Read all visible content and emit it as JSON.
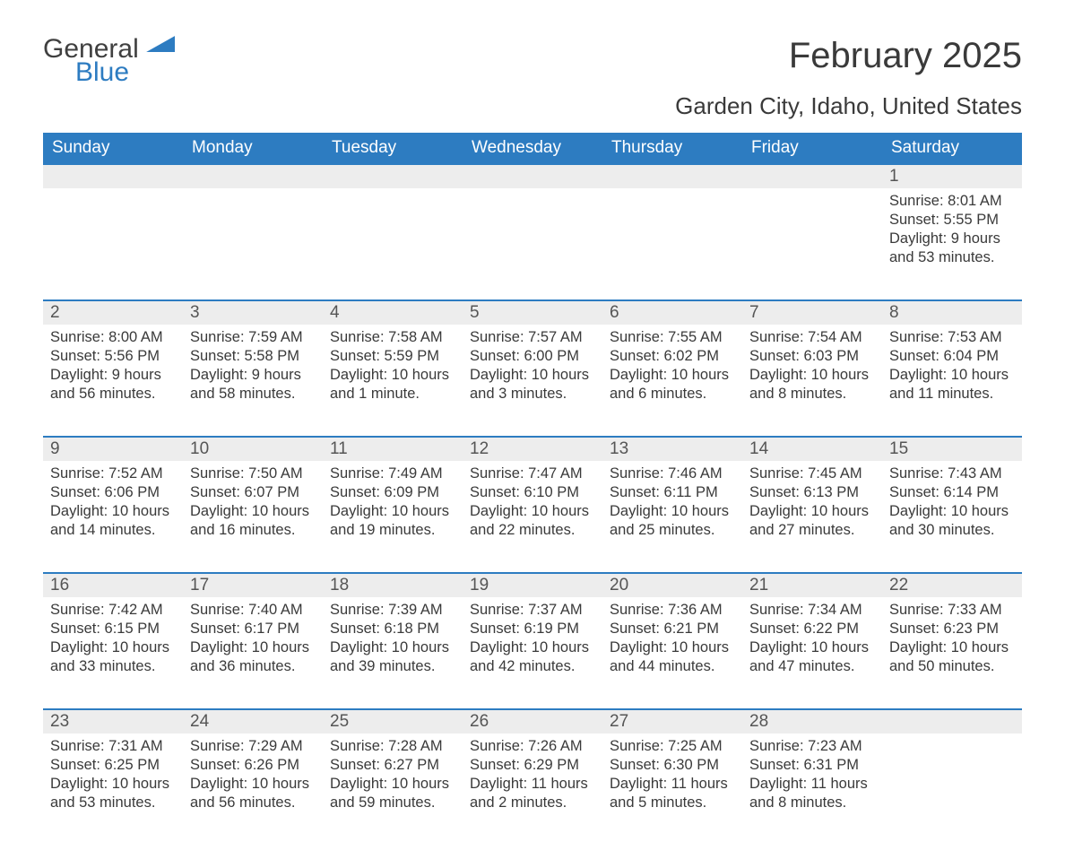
{
  "brand": {
    "word1": "General",
    "word2": "Blue"
  },
  "title": "February 2025",
  "location": "Garden City, Idaho, United States",
  "colors": {
    "accent": "#2d7cc1",
    "header_bg": "#2d7cc1",
    "header_text": "#ffffff",
    "daynum_bg": "#ededed",
    "text": "#3a3a3a",
    "page_bg": "#ffffff"
  },
  "day_headers": [
    "Sunday",
    "Monday",
    "Tuesday",
    "Wednesday",
    "Thursday",
    "Friday",
    "Saturday"
  ],
  "weeks": [
    [
      null,
      null,
      null,
      null,
      null,
      null,
      {
        "n": "1",
        "sunrise": "8:01 AM",
        "sunset": "5:55 PM",
        "daylight": "9 hours and 53 minutes."
      }
    ],
    [
      {
        "n": "2",
        "sunrise": "8:00 AM",
        "sunset": "5:56 PM",
        "daylight": "9 hours and 56 minutes."
      },
      {
        "n": "3",
        "sunrise": "7:59 AM",
        "sunset": "5:58 PM",
        "daylight": "9 hours and 58 minutes."
      },
      {
        "n": "4",
        "sunrise": "7:58 AM",
        "sunset": "5:59 PM",
        "daylight": "10 hours and 1 minute."
      },
      {
        "n": "5",
        "sunrise": "7:57 AM",
        "sunset": "6:00 PM",
        "daylight": "10 hours and 3 minutes."
      },
      {
        "n": "6",
        "sunrise": "7:55 AM",
        "sunset": "6:02 PM",
        "daylight": "10 hours and 6 minutes."
      },
      {
        "n": "7",
        "sunrise": "7:54 AM",
        "sunset": "6:03 PM",
        "daylight": "10 hours and 8 minutes."
      },
      {
        "n": "8",
        "sunrise": "7:53 AM",
        "sunset": "6:04 PM",
        "daylight": "10 hours and 11 minutes."
      }
    ],
    [
      {
        "n": "9",
        "sunrise": "7:52 AM",
        "sunset": "6:06 PM",
        "daylight": "10 hours and 14 minutes."
      },
      {
        "n": "10",
        "sunrise": "7:50 AM",
        "sunset": "6:07 PM",
        "daylight": "10 hours and 16 minutes."
      },
      {
        "n": "11",
        "sunrise": "7:49 AM",
        "sunset": "6:09 PM",
        "daylight": "10 hours and 19 minutes."
      },
      {
        "n": "12",
        "sunrise": "7:47 AM",
        "sunset": "6:10 PM",
        "daylight": "10 hours and 22 minutes."
      },
      {
        "n": "13",
        "sunrise": "7:46 AM",
        "sunset": "6:11 PM",
        "daylight": "10 hours and 25 minutes."
      },
      {
        "n": "14",
        "sunrise": "7:45 AM",
        "sunset": "6:13 PM",
        "daylight": "10 hours and 27 minutes."
      },
      {
        "n": "15",
        "sunrise": "7:43 AM",
        "sunset": "6:14 PM",
        "daylight": "10 hours and 30 minutes."
      }
    ],
    [
      {
        "n": "16",
        "sunrise": "7:42 AM",
        "sunset": "6:15 PM",
        "daylight": "10 hours and 33 minutes."
      },
      {
        "n": "17",
        "sunrise": "7:40 AM",
        "sunset": "6:17 PM",
        "daylight": "10 hours and 36 minutes."
      },
      {
        "n": "18",
        "sunrise": "7:39 AM",
        "sunset": "6:18 PM",
        "daylight": "10 hours and 39 minutes."
      },
      {
        "n": "19",
        "sunrise": "7:37 AM",
        "sunset": "6:19 PM",
        "daylight": "10 hours and 42 minutes."
      },
      {
        "n": "20",
        "sunrise": "7:36 AM",
        "sunset": "6:21 PM",
        "daylight": "10 hours and 44 minutes."
      },
      {
        "n": "21",
        "sunrise": "7:34 AM",
        "sunset": "6:22 PM",
        "daylight": "10 hours and 47 minutes."
      },
      {
        "n": "22",
        "sunrise": "7:33 AM",
        "sunset": "6:23 PM",
        "daylight": "10 hours and 50 minutes."
      }
    ],
    [
      {
        "n": "23",
        "sunrise": "7:31 AM",
        "sunset": "6:25 PM",
        "daylight": "10 hours and 53 minutes."
      },
      {
        "n": "24",
        "sunrise": "7:29 AM",
        "sunset": "6:26 PM",
        "daylight": "10 hours and 56 minutes."
      },
      {
        "n": "25",
        "sunrise": "7:28 AM",
        "sunset": "6:27 PM",
        "daylight": "10 hours and 59 minutes."
      },
      {
        "n": "26",
        "sunrise": "7:26 AM",
        "sunset": "6:29 PM",
        "daylight": "11 hours and 2 minutes."
      },
      {
        "n": "27",
        "sunrise": "7:25 AM",
        "sunset": "6:30 PM",
        "daylight": "11 hours and 5 minutes."
      },
      {
        "n": "28",
        "sunrise": "7:23 AM",
        "sunset": "6:31 PM",
        "daylight": "11 hours and 8 minutes."
      },
      null
    ]
  ],
  "labels": {
    "sunrise": "Sunrise: ",
    "sunset": "Sunset: ",
    "daylight": "Daylight: "
  }
}
